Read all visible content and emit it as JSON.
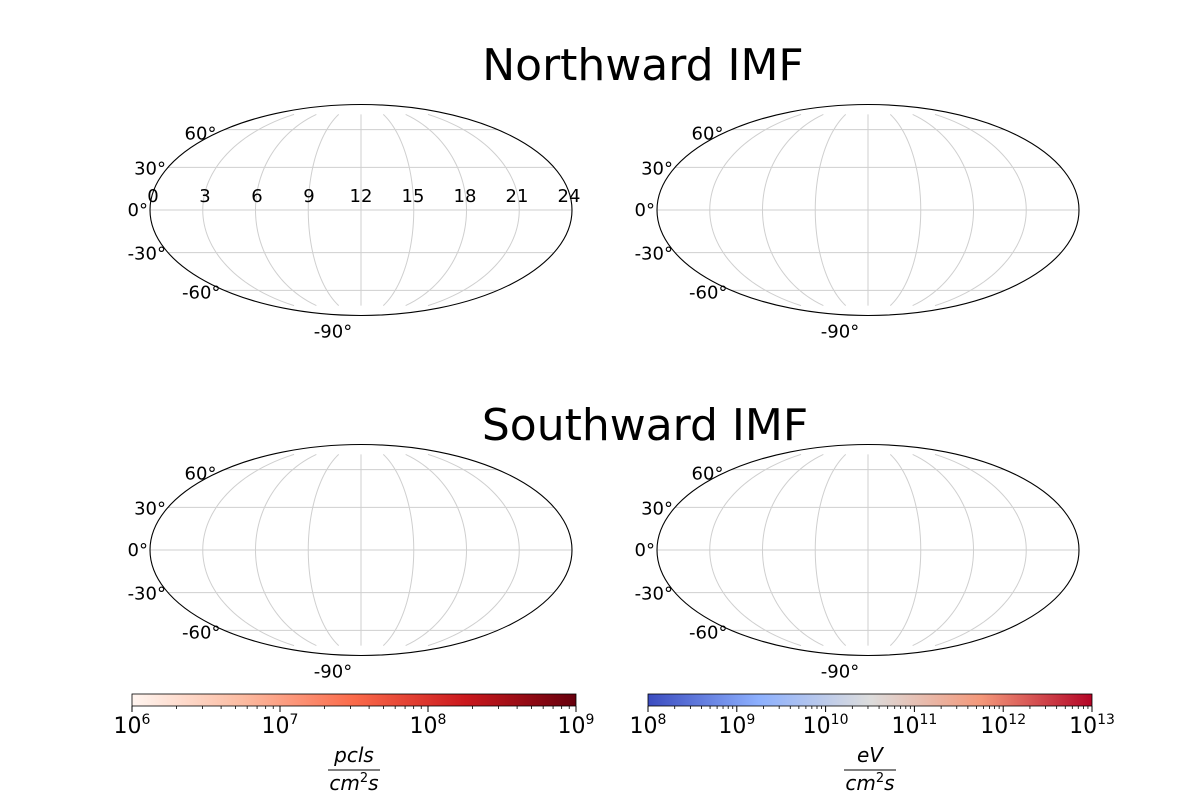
{
  "chart_data": [
    {
      "type": "heatmap",
      "projection": "mollweide",
      "title": "Northward IMF",
      "lat_ticks": [
        "60°",
        "30°",
        "0°",
        "-30°",
        "-60°",
        "-90°"
      ],
      "lon_ticks": [
        "0",
        "3",
        "6",
        "9",
        "12",
        "15",
        "18",
        "21",
        "24"
      ],
      "grid": true,
      "values": []
    },
    {
      "type": "heatmap",
      "projection": "mollweide",
      "title": "",
      "lat_ticks": [
        "60°",
        "30°",
        "0°",
        "-30°",
        "-60°",
        "-90°"
      ],
      "grid": true,
      "values": []
    },
    {
      "type": "heatmap",
      "projection": "mollweide",
      "title": "Southward IMF",
      "lat_ticks": [
        "60°",
        "30°",
        "0°",
        "-30°",
        "-60°",
        "-90°"
      ],
      "grid": true,
      "values": []
    },
    {
      "type": "heatmap",
      "projection": "mollweide",
      "title": "",
      "lat_ticks": [
        "60°",
        "30°",
        "0°",
        "-30°",
        "-60°",
        "-90°"
      ],
      "grid": true,
      "values": []
    }
  ],
  "titles": {
    "north": "Northward IMF",
    "south": "Southward IMF"
  },
  "colorbars": [
    {
      "name": "number-flux",
      "scale": "log",
      "range": [
        1000000,
        1000000000
      ],
      "colormap": "Reds",
      "colors": [
        "#fff5f0",
        "#fcbba1",
        "#fb6a4a",
        "#cb181d",
        "#67000d"
      ],
      "ticks": [
        {
          "base": "10",
          "exp": "6"
        },
        {
          "base": "10",
          "exp": "7"
        },
        {
          "base": "10",
          "exp": "8"
        },
        {
          "base": "10",
          "exp": "9"
        }
      ],
      "label": {
        "num": "pcls",
        "den_base": "cm",
        "den_exp": "2",
        "den_tail": "s"
      }
    },
    {
      "name": "energy-flux",
      "scale": "log",
      "range": [
        100000000,
        10000000000000
      ],
      "colormap": "coolwarm",
      "colors": [
        "#3b4cc0",
        "#8db0fe",
        "#dddddd",
        "#f4987a",
        "#b40426"
      ],
      "ticks": [
        {
          "base": "10",
          "exp": "8"
        },
        {
          "base": "10",
          "exp": "9"
        },
        {
          "base": "10",
          "exp": "10"
        },
        {
          "base": "10",
          "exp": "11"
        },
        {
          "base": "10",
          "exp": "12"
        },
        {
          "base": "10",
          "exp": "13"
        }
      ],
      "label": {
        "num": "eV",
        "den_base": "cm",
        "den_exp": "2",
        "den_tail": "s"
      }
    }
  ]
}
